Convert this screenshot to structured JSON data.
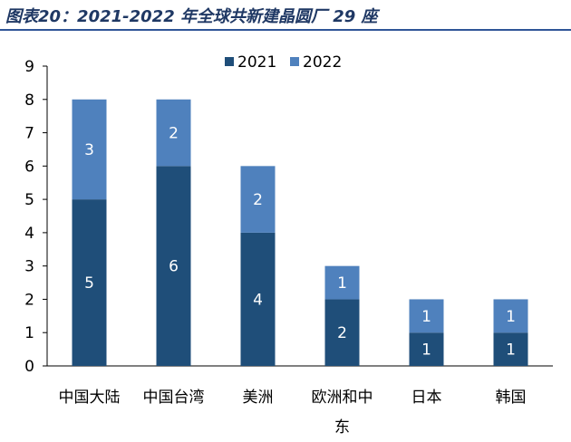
{
  "title": "图表20：2021-2022 年全球共新建晶圆厂 29 座",
  "colors": {
    "series_2021": "#1f4e79",
    "series_2022": "#4f81bd",
    "title": "#1f3864",
    "rule": "#2f5597"
  },
  "chart_data": {
    "type": "bar",
    "stacked": true,
    "categories": [
      "中国大陆",
      "中国台湾",
      "美洲",
      "欧洲和中东",
      "日本",
      "韩国"
    ],
    "category_lines": [
      [
        "中国大陆"
      ],
      [
        "中国台湾"
      ],
      [
        "美洲"
      ],
      [
        "欧洲和中",
        "东"
      ],
      [
        "日本"
      ],
      [
        "韩国"
      ]
    ],
    "series": [
      {
        "name": "2021",
        "values": [
          5,
          6,
          4,
          2,
          1,
          1
        ],
        "color": "#1f4e79"
      },
      {
        "name": "2022",
        "values": [
          3,
          2,
          2,
          1,
          1,
          1
        ],
        "color": "#4f81bd"
      }
    ],
    "ylim": [
      0,
      9
    ],
    "yticks": [
      "0",
      "1",
      "2",
      "3",
      "4",
      "5",
      "6",
      "7",
      "8",
      "9"
    ],
    "xlabel": "",
    "ylabel": "",
    "legend_position": "top",
    "grid": false
  }
}
